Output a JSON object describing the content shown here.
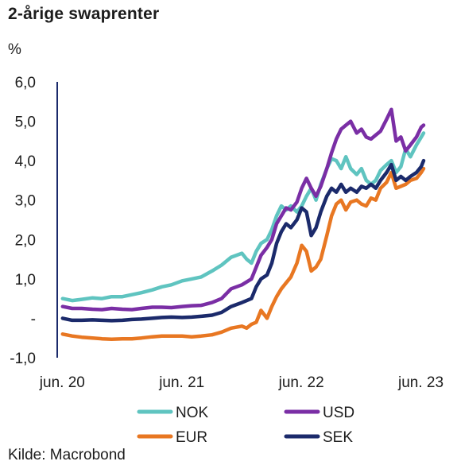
{
  "title": "2-årige swaprenter",
  "unit_label": "%",
  "source": "Kilde: Macrobond",
  "colors": {
    "NOK": "#5fc4c0",
    "USD": "#7a2ea5",
    "EUR": "#e87722",
    "SEK": "#1b2a6b",
    "axis": "#1b2a6b"
  },
  "chart_data": {
    "type": "line",
    "title": "2-årige swaprenter",
    "ylabel": "%",
    "xlabel": "",
    "ylim": [
      -1.0,
      6.0
    ],
    "xlim": [
      2020.375,
      2023.46
    ],
    "y_ticks": [
      {
        "value": 6.0,
        "label": "6,0"
      },
      {
        "value": 5.0,
        "label": "5,0"
      },
      {
        "value": 4.0,
        "label": "4,0"
      },
      {
        "value": 3.0,
        "label": "3,0"
      },
      {
        "value": 2.0,
        "label": "2,0"
      },
      {
        "value": 1.0,
        "label": "1,0"
      },
      {
        "value": 0.0,
        "label": "-"
      },
      {
        "value": -1.0,
        "label": "-1,0"
      }
    ],
    "x_ticks": [
      {
        "value": 2020.417,
        "label": "jun. 20"
      },
      {
        "value": 2021.417,
        "label": "jun. 21"
      },
      {
        "value": 2022.417,
        "label": "jun. 22"
      },
      {
        "value": 2023.417,
        "label": "jun. 23"
      }
    ],
    "grid": false,
    "legend": "bottom",
    "series": [
      {
        "name": "NOK",
        "points": [
          [
            2020.42,
            0.5
          ],
          [
            2020.5,
            0.45
          ],
          [
            2020.58,
            0.48
          ],
          [
            2020.67,
            0.52
          ],
          [
            2020.75,
            0.5
          ],
          [
            2020.83,
            0.55
          ],
          [
            2020.92,
            0.55
          ],
          [
            2021.0,
            0.6
          ],
          [
            2021.08,
            0.65
          ],
          [
            2021.17,
            0.72
          ],
          [
            2021.25,
            0.8
          ],
          [
            2021.33,
            0.85
          ],
          [
            2021.42,
            0.95
          ],
          [
            2021.5,
            1.0
          ],
          [
            2021.58,
            1.05
          ],
          [
            2021.67,
            1.2
          ],
          [
            2021.75,
            1.35
          ],
          [
            2021.83,
            1.55
          ],
          [
            2021.92,
            1.65
          ],
          [
            2021.96,
            1.5
          ],
          [
            2022.0,
            1.4
          ],
          [
            2022.04,
            1.7
          ],
          [
            2022.08,
            1.9
          ],
          [
            2022.13,
            2.0
          ],
          [
            2022.17,
            2.25
          ],
          [
            2022.21,
            2.6
          ],
          [
            2022.25,
            2.85
          ],
          [
            2022.29,
            2.75
          ],
          [
            2022.33,
            2.85
          ],
          [
            2022.38,
            2.7
          ],
          [
            2022.42,
            2.85
          ],
          [
            2022.46,
            3.1
          ],
          [
            2022.5,
            3.3
          ],
          [
            2022.54,
            3.0
          ],
          [
            2022.58,
            3.4
          ],
          [
            2022.63,
            3.8
          ],
          [
            2022.67,
            4.05
          ],
          [
            2022.71,
            4.0
          ],
          [
            2022.75,
            3.8
          ],
          [
            2022.79,
            4.1
          ],
          [
            2022.83,
            3.8
          ],
          [
            2022.88,
            3.65
          ],
          [
            2022.92,
            3.8
          ],
          [
            2022.96,
            3.5
          ],
          [
            2023.0,
            3.4
          ],
          [
            2023.04,
            3.5
          ],
          [
            2023.08,
            3.75
          ],
          [
            2023.13,
            3.9
          ],
          [
            2023.17,
            4.0
          ],
          [
            2023.21,
            3.7
          ],
          [
            2023.25,
            3.85
          ],
          [
            2023.29,
            4.3
          ],
          [
            2023.33,
            4.1
          ],
          [
            2023.38,
            4.4
          ],
          [
            2023.42,
            4.6
          ],
          [
            2023.44,
            4.7
          ]
        ]
      },
      {
        "name": "USD",
        "points": [
          [
            2020.42,
            0.3
          ],
          [
            2020.5,
            0.25
          ],
          [
            2020.58,
            0.25
          ],
          [
            2020.67,
            0.23
          ],
          [
            2020.75,
            0.22
          ],
          [
            2020.83,
            0.25
          ],
          [
            2020.92,
            0.23
          ],
          [
            2021.0,
            0.22
          ],
          [
            2021.08,
            0.25
          ],
          [
            2021.17,
            0.28
          ],
          [
            2021.25,
            0.28
          ],
          [
            2021.33,
            0.27
          ],
          [
            2021.42,
            0.3
          ],
          [
            2021.5,
            0.32
          ],
          [
            2021.58,
            0.33
          ],
          [
            2021.67,
            0.4
          ],
          [
            2021.75,
            0.5
          ],
          [
            2021.83,
            0.75
          ],
          [
            2021.92,
            0.85
          ],
          [
            2022.0,
            1.0
          ],
          [
            2022.04,
            1.3
          ],
          [
            2022.08,
            1.6
          ],
          [
            2022.13,
            1.8
          ],
          [
            2022.17,
            2.0
          ],
          [
            2022.21,
            2.4
          ],
          [
            2022.25,
            2.6
          ],
          [
            2022.29,
            2.8
          ],
          [
            2022.33,
            2.75
          ],
          [
            2022.38,
            2.95
          ],
          [
            2022.42,
            3.3
          ],
          [
            2022.46,
            3.55
          ],
          [
            2022.5,
            3.3
          ],
          [
            2022.54,
            3.1
          ],
          [
            2022.58,
            3.35
          ],
          [
            2022.63,
            3.8
          ],
          [
            2022.67,
            4.2
          ],
          [
            2022.71,
            4.55
          ],
          [
            2022.75,
            4.8
          ],
          [
            2022.79,
            4.9
          ],
          [
            2022.83,
            5.0
          ],
          [
            2022.88,
            4.7
          ],
          [
            2022.92,
            4.8
          ],
          [
            2022.96,
            4.6
          ],
          [
            2023.0,
            4.55
          ],
          [
            2023.04,
            4.65
          ],
          [
            2023.08,
            4.75
          ],
          [
            2023.13,
            5.05
          ],
          [
            2023.17,
            5.3
          ],
          [
            2023.21,
            4.5
          ],
          [
            2023.25,
            4.6
          ],
          [
            2023.29,
            4.25
          ],
          [
            2023.33,
            4.4
          ],
          [
            2023.38,
            4.6
          ],
          [
            2023.42,
            4.85
          ],
          [
            2023.44,
            4.9
          ]
        ]
      },
      {
        "name": "EUR",
        "points": [
          [
            2020.42,
            -0.4
          ],
          [
            2020.5,
            -0.45
          ],
          [
            2020.58,
            -0.48
          ],
          [
            2020.67,
            -0.5
          ],
          [
            2020.75,
            -0.52
          ],
          [
            2020.83,
            -0.53
          ],
          [
            2020.92,
            -0.52
          ],
          [
            2021.0,
            -0.52
          ],
          [
            2021.08,
            -0.5
          ],
          [
            2021.17,
            -0.47
          ],
          [
            2021.25,
            -0.45
          ],
          [
            2021.33,
            -0.45
          ],
          [
            2021.42,
            -0.45
          ],
          [
            2021.5,
            -0.47
          ],
          [
            2021.58,
            -0.45
          ],
          [
            2021.67,
            -0.42
          ],
          [
            2021.75,
            -0.35
          ],
          [
            2021.83,
            -0.25
          ],
          [
            2021.92,
            -0.2
          ],
          [
            2021.96,
            -0.25
          ],
          [
            2022.0,
            -0.15
          ],
          [
            2022.04,
            -0.1
          ],
          [
            2022.08,
            0.2
          ],
          [
            2022.13,
            0.0
          ],
          [
            2022.17,
            0.3
          ],
          [
            2022.21,
            0.55
          ],
          [
            2022.25,
            0.75
          ],
          [
            2022.29,
            0.9
          ],
          [
            2022.33,
            1.05
          ],
          [
            2022.38,
            1.4
          ],
          [
            2022.42,
            1.85
          ],
          [
            2022.46,
            1.7
          ],
          [
            2022.5,
            1.2
          ],
          [
            2022.54,
            1.3
          ],
          [
            2022.58,
            1.5
          ],
          [
            2022.63,
            2.1
          ],
          [
            2022.67,
            2.6
          ],
          [
            2022.71,
            2.9
          ],
          [
            2022.75,
            3.0
          ],
          [
            2022.79,
            2.75
          ],
          [
            2022.83,
            2.95
          ],
          [
            2022.88,
            3.0
          ],
          [
            2022.92,
            2.9
          ],
          [
            2022.96,
            2.85
          ],
          [
            2023.0,
            3.05
          ],
          [
            2023.04,
            3.0
          ],
          [
            2023.08,
            3.3
          ],
          [
            2023.13,
            3.45
          ],
          [
            2023.17,
            3.7
          ],
          [
            2023.21,
            3.3
          ],
          [
            2023.25,
            3.35
          ],
          [
            2023.29,
            3.4
          ],
          [
            2023.33,
            3.5
          ],
          [
            2023.38,
            3.55
          ],
          [
            2023.42,
            3.7
          ],
          [
            2023.44,
            3.8
          ]
        ]
      },
      {
        "name": "SEK",
        "points": [
          [
            2020.42,
            0.0
          ],
          [
            2020.5,
            -0.05
          ],
          [
            2020.58,
            -0.05
          ],
          [
            2020.67,
            -0.04
          ],
          [
            2020.75,
            -0.05
          ],
          [
            2020.83,
            -0.06
          ],
          [
            2020.92,
            -0.05
          ],
          [
            2021.0,
            -0.03
          ],
          [
            2021.08,
            -0.02
          ],
          [
            2021.17,
            0.0
          ],
          [
            2021.25,
            0.02
          ],
          [
            2021.33,
            0.03
          ],
          [
            2021.42,
            0.02
          ],
          [
            2021.5,
            0.03
          ],
          [
            2021.58,
            0.05
          ],
          [
            2021.67,
            0.08
          ],
          [
            2021.75,
            0.15
          ],
          [
            2021.83,
            0.3
          ],
          [
            2021.92,
            0.4
          ],
          [
            2022.0,
            0.5
          ],
          [
            2022.04,
            0.8
          ],
          [
            2022.08,
            1.0
          ],
          [
            2022.13,
            1.1
          ],
          [
            2022.17,
            1.4
          ],
          [
            2022.21,
            1.9
          ],
          [
            2022.25,
            2.2
          ],
          [
            2022.29,
            2.4
          ],
          [
            2022.33,
            2.3
          ],
          [
            2022.38,
            2.5
          ],
          [
            2022.42,
            2.8
          ],
          [
            2022.46,
            2.7
          ],
          [
            2022.5,
            2.1
          ],
          [
            2022.54,
            2.3
          ],
          [
            2022.58,
            2.7
          ],
          [
            2022.63,
            3.1
          ],
          [
            2022.67,
            3.3
          ],
          [
            2022.71,
            3.2
          ],
          [
            2022.75,
            3.4
          ],
          [
            2022.79,
            3.2
          ],
          [
            2022.83,
            3.3
          ],
          [
            2022.88,
            3.2
          ],
          [
            2022.92,
            3.35
          ],
          [
            2022.96,
            3.3
          ],
          [
            2023.0,
            3.4
          ],
          [
            2023.04,
            3.3
          ],
          [
            2023.08,
            3.5
          ],
          [
            2023.13,
            3.7
          ],
          [
            2023.17,
            3.9
          ],
          [
            2023.21,
            3.5
          ],
          [
            2023.25,
            3.6
          ],
          [
            2023.29,
            3.5
          ],
          [
            2023.33,
            3.6
          ],
          [
            2023.38,
            3.7
          ],
          [
            2023.42,
            3.85
          ],
          [
            2023.44,
            4.0
          ]
        ]
      }
    ]
  }
}
